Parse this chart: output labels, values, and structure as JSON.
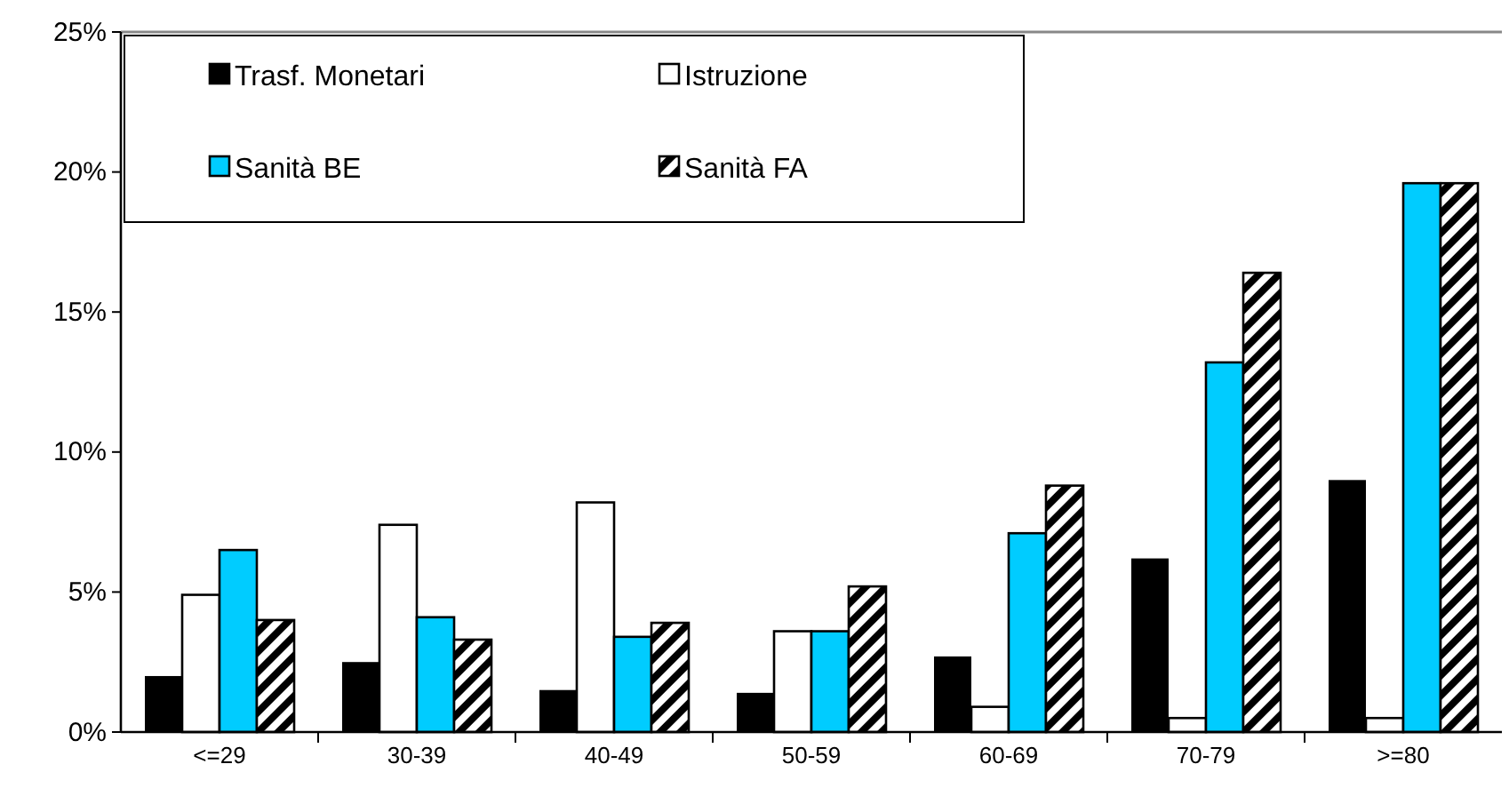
{
  "chart_data": {
    "type": "bar",
    "categories": [
      "<=29",
      "30-39",
      "40-49",
      "50-59",
      "60-69",
      "70-79",
      ">=80"
    ],
    "series": [
      {
        "name": "Trasf. Monetari",
        "color": "#000000",
        "values": [
          2.0,
          2.5,
          1.5,
          1.4,
          2.7,
          6.2,
          9.0
        ]
      },
      {
        "name": "Istruzione",
        "color": "#ffffff",
        "values": [
          4.9,
          7.4,
          8.2,
          3.6,
          0.9,
          0.5,
          0.5
        ]
      },
      {
        "name": "Sanità BE",
        "color": "#00ccff",
        "values": [
          6.5,
          4.1,
          3.4,
          3.6,
          7.1,
          13.2,
          19.6
        ]
      },
      {
        "name": "Sanità FA",
        "color": "#000000",
        "values": [
          4.0,
          3.3,
          3.9,
          5.2,
          8.8,
          16.4,
          19.6
        ]
      }
    ],
    "ylim": [
      0,
      25
    ],
    "yticks": [
      {
        "value": 0,
        "label": "0%"
      },
      {
        "value": 5,
        "label": "5%"
      },
      {
        "value": 10,
        "label": "10%"
      },
      {
        "value": 15,
        "label": "15%"
      },
      {
        "value": 20,
        "label": "20%"
      },
      {
        "value": 25,
        "label": "25%"
      }
    ],
    "grid": false,
    "legend": "top left"
  }
}
